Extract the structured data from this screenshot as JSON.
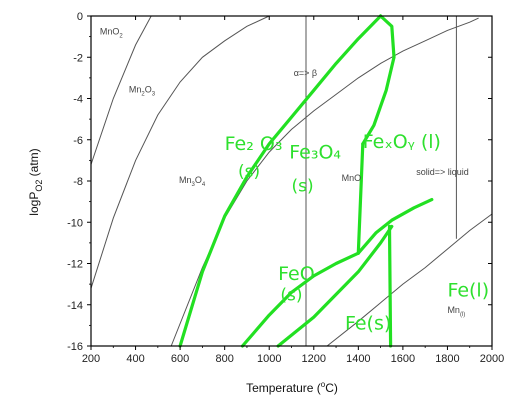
{
  "chart_data": {
    "type": "line",
    "xlabel": "Temperature (°C)",
    "ylabel": "logPₒ₂ (atm)",
    "ylabel_main": "logP",
    "ylabel_sub": "O2",
    "ylabel_unit": " (atm)",
    "xlabel_main": "Temperature (",
    "xlabel_deg": "o",
    "xlabel_end": "C)",
    "xlim": [
      200,
      2000
    ],
    "ylim": [
      -16,
      0
    ],
    "xticks": [
      200,
      400,
      600,
      800,
      1000,
      1200,
      1400,
      1600,
      1800,
      2000
    ],
    "yticks": [
      0,
      -2,
      -4,
      -6,
      -8,
      -10,
      -12,
      -14,
      -16
    ],
    "mn_lines": [
      {
        "name": "MnO2/Mn2O3",
        "points": [
          [
            200,
            -7.2
          ],
          [
            300,
            -4.0
          ],
          [
            400,
            -1.4
          ],
          [
            470,
            0
          ]
        ]
      },
      {
        "name": "Mn2O3/Mn3O4",
        "points": [
          [
            200,
            -13.2
          ],
          [
            300,
            -9.8
          ],
          [
            400,
            -7.0
          ],
          [
            500,
            -4.8
          ],
          [
            600,
            -3.2
          ],
          [
            700,
            -2.0
          ],
          [
            800,
            -1.2
          ],
          [
            900,
            -0.5
          ],
          [
            1000,
            0
          ]
        ]
      },
      {
        "name": "Mn3O4/MnO",
        "points": [
          [
            560,
            -16
          ],
          [
            700,
            -12.2
          ],
          [
            800,
            -9.8
          ],
          [
            900,
            -8.0
          ],
          [
            1000,
            -6.6
          ],
          [
            1100,
            -5.5
          ],
          [
            1200,
            -4.6
          ],
          [
            1300,
            -3.8
          ],
          [
            1400,
            -3.0
          ],
          [
            1500,
            -2.3
          ],
          [
            1600,
            -1.7
          ],
          [
            1700,
            -1.2
          ],
          [
            1800,
            -0.7
          ],
          [
            1900,
            -0.3
          ],
          [
            1940,
            -0.1
          ]
        ]
      },
      {
        "name": "MnO/Mn",
        "points": [
          [
            1260,
            -16
          ],
          [
            1400,
            -14.8
          ],
          [
            1500,
            -13.9
          ],
          [
            1600,
            -13.0
          ],
          [
            1700,
            -12.2
          ],
          [
            1800,
            -11.3
          ],
          [
            1900,
            -10.4
          ],
          [
            2000,
            -9.6
          ]
        ]
      },
      {
        "name": "alpha-beta",
        "points": [
          [
            1165,
            0
          ],
          [
            1165,
            -16
          ]
        ]
      },
      {
        "name": "solid-liquid",
        "points": [
          [
            1840,
            0
          ],
          [
            1840,
            -10.8
          ]
        ]
      }
    ],
    "fe_lines": [
      {
        "name": "Fe2O3/Fe3O4",
        "points": [
          [
            600,
            -16
          ],
          [
            700,
            -12.4
          ],
          [
            800,
            -9.7
          ],
          [
            900,
            -7.8
          ],
          [
            1000,
            -6.2
          ],
          [
            1100,
            -4.9
          ],
          [
            1200,
            -3.6
          ],
          [
            1300,
            -2.3
          ],
          [
            1400,
            -1.1
          ],
          [
            1500,
            0
          ]
        ]
      },
      {
        "name": "Fe3O4/FexOy(l)",
        "points": [
          [
            1500,
            0
          ],
          [
            1550,
            -0.5
          ],
          [
            1560,
            -2.0
          ],
          [
            1525,
            -3.6
          ],
          [
            1470,
            -5.3
          ],
          [
            1420,
            -6.2
          ]
        ]
      },
      {
        "name": "FeO/Fe3O4",
        "points": [
          [
            1420,
            -6.2
          ],
          [
            1400,
            -11.5
          ]
        ]
      },
      {
        "name": "Fe3O4/FeO",
        "points": [
          [
            880,
            -16
          ],
          [
            1000,
            -14.5
          ],
          [
            1100,
            -13.4
          ],
          [
            1200,
            -12.6
          ],
          [
            1300,
            -12.0
          ],
          [
            1400,
            -11.5
          ]
        ]
      },
      {
        "name": "FeO/FexOy(l)",
        "points": [
          [
            1400,
            -11.5
          ],
          [
            1480,
            -10.5
          ],
          [
            1550,
            -9.9
          ],
          [
            1650,
            -9.3
          ],
          [
            1730,
            -8.9
          ]
        ]
      },
      {
        "name": "FeO/Fe",
        "points": [
          [
            1040,
            -16
          ],
          [
            1200,
            -14.6
          ],
          [
            1300,
            -13.5
          ],
          [
            1400,
            -12.4
          ],
          [
            1500,
            -11.0
          ],
          [
            1550,
            -10.2
          ]
        ]
      },
      {
        "name": "Fe(s)/Fe(l)",
        "points": [
          [
            1540,
            -10.2
          ],
          [
            1545,
            -16
          ]
        ]
      }
    ],
    "mn_labels": [
      {
        "text": "MnO",
        "sub": "2",
        "x": 240,
        "y": -0.9
      },
      {
        "text": "Mn",
        "sub": "2",
        "after": "O",
        "sub2": "3",
        "x": 370,
        "y": -3.7
      },
      {
        "text": "Mn",
        "sub": "3",
        "after": "O",
        "sub2": "4",
        "x": 595,
        "y": -8.1
      },
      {
        "text": "MnO",
        "x": 1325,
        "y": -8.0
      },
      {
        "text": "α=> β",
        "x": 1110,
        "y": -2.9
      },
      {
        "text": "solid=> liquid",
        "x": 1660,
        "y": -7.7
      },
      {
        "text": "Mn",
        "sub": "(l)",
        "x": 1800,
        "y": -14.4
      }
    ],
    "fe_labels": [
      {
        "text": "Fe₂ O₃",
        "x": 800,
        "y": -6.5
      },
      {
        "text": "(s)",
        "x": 860,
        "y": -7.8
      },
      {
        "text": "Fe₃O₄",
        "x": 1090,
        "y": -6.9
      },
      {
        "text": "(s)",
        "x": 1100,
        "y": -8.5
      },
      {
        "text": "FeₓOᵧ (l)",
        "x": 1420,
        "y": -6.4
      },
      {
        "text": "FeO",
        "x": 1040,
        "y": -12.8
      },
      {
        "text": "(s)",
        "x": 1050,
        "y": -13.8
      },
      {
        "text": "Fe(s)",
        "x": 1340,
        "y": -15.2
      },
      {
        "text": "Fe(l)",
        "x": 1800,
        "y": -13.6
      }
    ],
    "colors": {
      "mn_line": "#555555",
      "fe_line": "#22e022",
      "axis": "#000000"
    }
  }
}
